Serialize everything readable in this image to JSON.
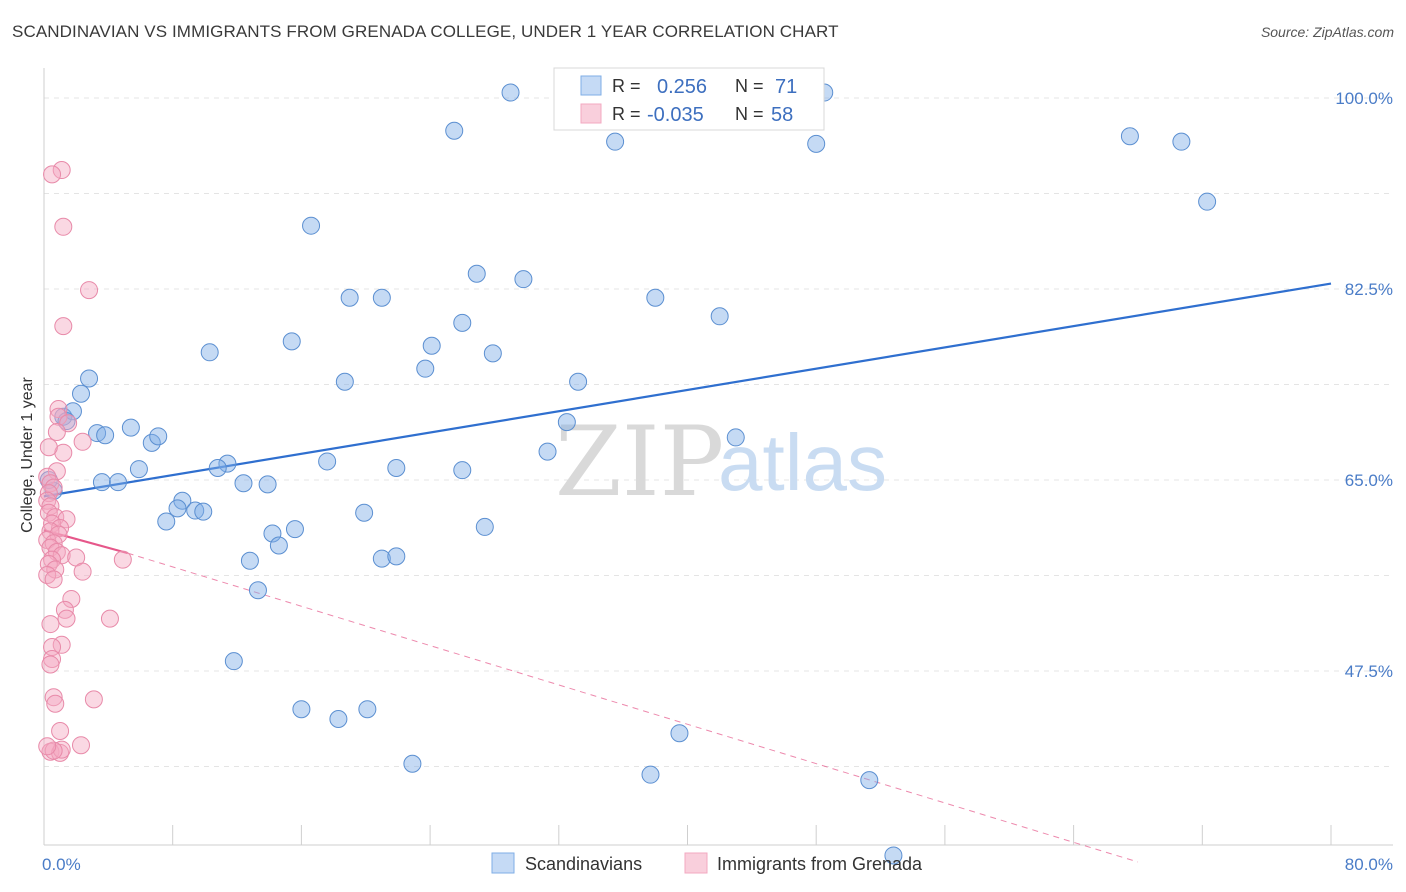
{
  "title": "SCANDINAVIAN VS IMMIGRANTS FROM GRENADA COLLEGE, UNDER 1 YEAR CORRELATION CHART",
  "source": "Source: ZipAtlas.com",
  "watermark": {
    "part1": "ZIP",
    "part2": "atlas"
  },
  "chart_data": {
    "type": "scatter",
    "ylabel": "College, Under 1 year",
    "xlim": [
      0,
      80
    ],
    "ylim": [
      30.0,
      103.0
    ],
    "x_tick_labels": [
      {
        "value": 0,
        "label": "0.0%"
      },
      {
        "value": 80,
        "label": "80.0%"
      }
    ],
    "y_tick_labels": [
      {
        "value": 100.0,
        "label": "100.0%"
      },
      {
        "value": 82.5,
        "label": "82.5%"
      },
      {
        "value": 65.0,
        "label": "65.0%"
      },
      {
        "value": 47.5,
        "label": "47.5%"
      }
    ],
    "grid": true,
    "legend": {
      "position": "top-center",
      "rows": [
        {
          "r_label": "R =",
          "r_value": "0.256",
          "n_label": "N =",
          "n_value": "71"
        },
        {
          "r_label": "R =",
          "r_value": "-0.035",
          "n_label": "N =",
          "n_value": "58"
        }
      ]
    },
    "series": [
      {
        "name": "Scandinavians",
        "color": "#7faee6",
        "stroke": "#5b8fd1",
        "trend": {
          "x0": 0,
          "y0": 63.5,
          "x1": 80,
          "y1": 83.0,
          "color": "#2f6fcf"
        },
        "points": [
          [
            29.0,
            100.5
          ],
          [
            48.5,
            100.5
          ],
          [
            25.5,
            97.0
          ],
          [
            35.5,
            96.0
          ],
          [
            48.0,
            95.8
          ],
          [
            67.5,
            96.5
          ],
          [
            70.7,
            96.0
          ],
          [
            72.3,
            90.5
          ],
          [
            16.6,
            88.3
          ],
          [
            26.9,
            83.9
          ],
          [
            29.8,
            83.4
          ],
          [
            19.0,
            81.7
          ],
          [
            21.0,
            81.7
          ],
          [
            38.0,
            81.7
          ],
          [
            42.0,
            80.0
          ],
          [
            26.0,
            79.4
          ],
          [
            15.4,
            77.7
          ],
          [
            10.3,
            76.7
          ],
          [
            24.1,
            77.3
          ],
          [
            27.9,
            76.6
          ],
          [
            23.7,
            75.2
          ],
          [
            18.7,
            74.0
          ],
          [
            33.2,
            74.0
          ],
          [
            2.8,
            74.3
          ],
          [
            2.3,
            72.9
          ],
          [
            1.2,
            70.8
          ],
          [
            1.8,
            71.3
          ],
          [
            1.4,
            70.4
          ],
          [
            32.5,
            70.3
          ],
          [
            43.0,
            68.9
          ],
          [
            5.4,
            69.8
          ],
          [
            3.3,
            69.3
          ],
          [
            3.8,
            69.1
          ],
          [
            6.7,
            68.4
          ],
          [
            7.1,
            69.0
          ],
          [
            31.3,
            67.6
          ],
          [
            17.6,
            66.7
          ],
          [
            11.4,
            66.5
          ],
          [
            21.9,
            66.1
          ],
          [
            26.0,
            65.9
          ],
          [
            5.9,
            66.0
          ],
          [
            10.8,
            66.1
          ],
          [
            3.6,
            64.8
          ],
          [
            4.6,
            64.8
          ],
          [
            12.4,
            64.7
          ],
          [
            13.9,
            64.6
          ],
          [
            8.6,
            63.1
          ],
          [
            8.3,
            62.4
          ],
          [
            9.4,
            62.2
          ],
          [
            9.9,
            62.1
          ],
          [
            7.6,
            61.2
          ],
          [
            0.6,
            64.0
          ],
          [
            19.9,
            62.0
          ],
          [
            27.4,
            60.7
          ],
          [
            14.2,
            60.1
          ],
          [
            15.6,
            60.5
          ],
          [
            14.6,
            59.0
          ],
          [
            12.8,
            57.6
          ],
          [
            21.0,
            57.8
          ],
          [
            21.9,
            58.0
          ],
          [
            13.3,
            54.9
          ],
          [
            11.8,
            48.4
          ],
          [
            16.0,
            44.0
          ],
          [
            18.3,
            43.1
          ],
          [
            20.1,
            44.0
          ],
          [
            39.5,
            41.8
          ],
          [
            22.9,
            39.0
          ],
          [
            37.7,
            38.0
          ],
          [
            51.3,
            37.5
          ],
          [
            52.8,
            30.6
          ],
          [
            0.3,
            65.0
          ]
        ]
      },
      {
        "name": "Immigrants from Grenada",
        "color": "#f3a8c1",
        "stroke": "#e88aa9",
        "trend": {
          "x0": 0,
          "y0": 60.4,
          "x1": 5.2,
          "y1": 58.3,
          "color": "#e6578a"
        },
        "trend_extension": {
          "x0": 5.2,
          "y0": 58.3,
          "x1": 68.0,
          "y1": 30.0
        },
        "points": [
          [
            1.1,
            93.4
          ],
          [
            0.5,
            93.0
          ],
          [
            1.2,
            88.2
          ],
          [
            2.8,
            82.4
          ],
          [
            1.2,
            79.1
          ],
          [
            0.9,
            71.5
          ],
          [
            0.9,
            70.8
          ],
          [
            1.5,
            70.2
          ],
          [
            0.8,
            69.4
          ],
          [
            2.4,
            68.5
          ],
          [
            1.2,
            67.5
          ],
          [
            0.3,
            68.0
          ],
          [
            0.8,
            65.8
          ],
          [
            0.2,
            65.3
          ],
          [
            0.4,
            64.7
          ],
          [
            0.6,
            64.3
          ],
          [
            0.3,
            63.8
          ],
          [
            0.2,
            63.1
          ],
          [
            0.4,
            62.6
          ],
          [
            0.3,
            62.0
          ],
          [
            0.7,
            61.6
          ],
          [
            1.4,
            61.4
          ],
          [
            0.5,
            61.0
          ],
          [
            1.0,
            60.6
          ],
          [
            0.4,
            60.3
          ],
          [
            0.9,
            60.0
          ],
          [
            0.2,
            59.5
          ],
          [
            0.6,
            59.2
          ],
          [
            0.4,
            58.8
          ],
          [
            0.8,
            58.4
          ],
          [
            1.1,
            58.1
          ],
          [
            0.5,
            57.7
          ],
          [
            2.0,
            57.9
          ],
          [
            0.3,
            57.3
          ],
          [
            4.9,
            57.7
          ],
          [
            2.4,
            56.6
          ],
          [
            0.7,
            56.8
          ],
          [
            0.2,
            56.3
          ],
          [
            0.6,
            55.9
          ],
          [
            1.7,
            54.1
          ],
          [
            1.3,
            53.1
          ],
          [
            1.4,
            52.3
          ],
          [
            4.1,
            52.3
          ],
          [
            0.4,
            51.8
          ],
          [
            1.1,
            49.9
          ],
          [
            0.5,
            49.7
          ],
          [
            0.5,
            48.6
          ],
          [
            0.4,
            48.1
          ],
          [
            0.6,
            45.1
          ],
          [
            0.7,
            44.5
          ],
          [
            3.1,
            44.9
          ],
          [
            1.0,
            42.0
          ],
          [
            2.3,
            40.7
          ],
          [
            0.4,
            40.1
          ],
          [
            1.0,
            40.0
          ],
          [
            1.1,
            40.3
          ],
          [
            0.6,
            40.2
          ],
          [
            0.2,
            40.6
          ]
        ]
      }
    ]
  }
}
